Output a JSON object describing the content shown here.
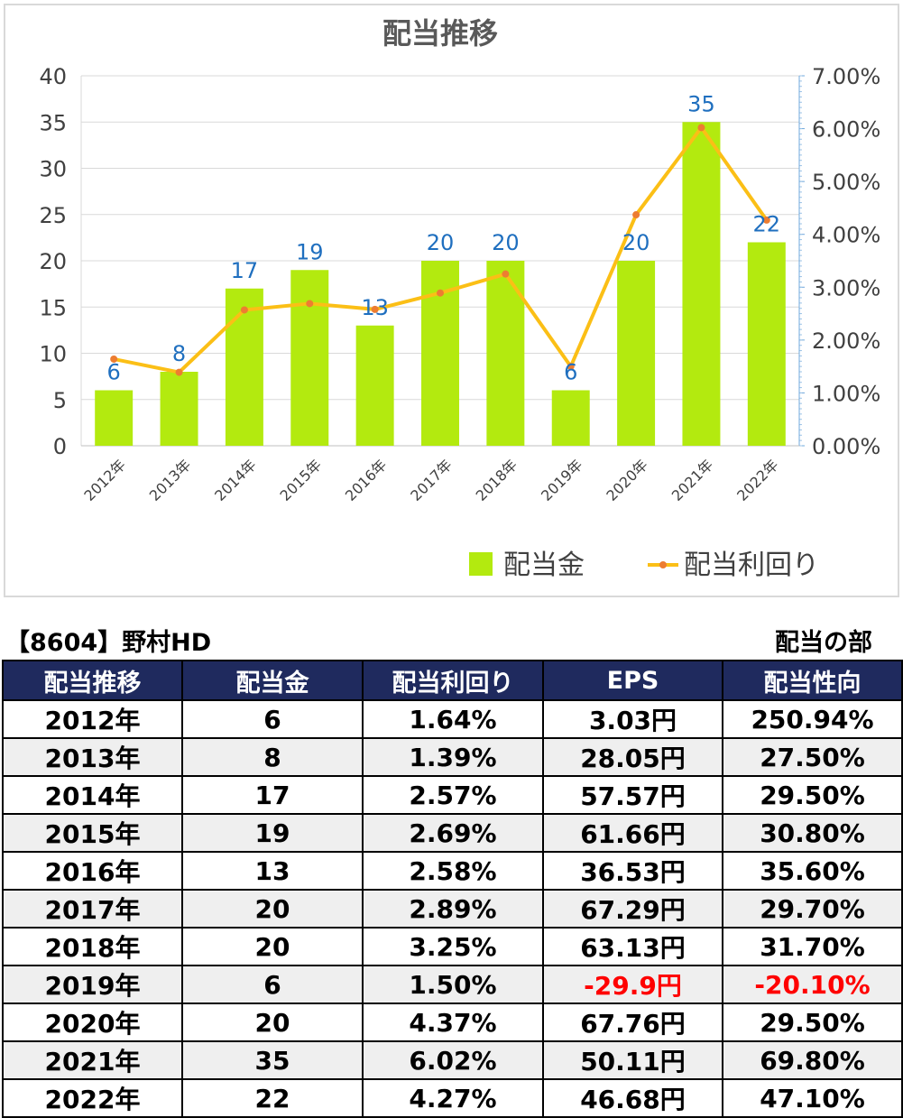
{
  "chart_data": {
    "type": "bar+line",
    "title": "配当推移",
    "categories": [
      "2012年",
      "2013年",
      "2014年",
      "2015年",
      "2016年",
      "2017年",
      "2018年",
      "2019年",
      "2020年",
      "2021年",
      "2022年"
    ],
    "series": [
      {
        "name": "配当金",
        "type": "bar",
        "axis": "left",
        "color": "#b3ea0f",
        "values": [
          6,
          8,
          17,
          19,
          13,
          20,
          20,
          6,
          20,
          35,
          22
        ]
      },
      {
        "name": "配当利回り",
        "type": "line",
        "axis": "right",
        "color": "#fbbf16",
        "values": [
          1.64,
          1.39,
          2.57,
          2.69,
          2.58,
          2.89,
          3.25,
          1.5,
          4.37,
          6.02,
          4.27
        ]
      }
    ],
    "ylim_left": [
      0,
      40
    ],
    "yticks_left": [
      "0",
      "5",
      "10",
      "15",
      "20",
      "25",
      "30",
      "35",
      "40"
    ],
    "ylim_right": [
      0,
      7
    ],
    "yticks_right": [
      "0.00%",
      "1.00%",
      "2.00%",
      "3.00%",
      "4.00%",
      "5.00%",
      "6.00%",
      "7.00%"
    ],
    "grid": true,
    "legend_position": "bottom-right",
    "data_label_color": "#1f6fbf"
  },
  "caption": {
    "left": "【8604】野村HD",
    "right": "配当の部"
  },
  "table": {
    "headers": [
      "配当推移",
      "配当金",
      "配当利回り",
      "EPS",
      "配当性向"
    ],
    "rows": [
      {
        "year": "2012年",
        "dividend": "6",
        "yield": "1.64%",
        "eps": "3.03円",
        "payout": "250.94%",
        "negative": false
      },
      {
        "year": "2013年",
        "dividend": "8",
        "yield": "1.39%",
        "eps": "28.05円",
        "payout": "27.50%",
        "negative": false
      },
      {
        "year": "2014年",
        "dividend": "17",
        "yield": "2.57%",
        "eps": "57.57円",
        "payout": "29.50%",
        "negative": false
      },
      {
        "year": "2015年",
        "dividend": "19",
        "yield": "2.69%",
        "eps": "61.66円",
        "payout": "30.80%",
        "negative": false
      },
      {
        "year": "2016年",
        "dividend": "13",
        "yield": "2.58%",
        "eps": "36.53円",
        "payout": "35.60%",
        "negative": false
      },
      {
        "year": "2017年",
        "dividend": "20",
        "yield": "2.89%",
        "eps": "67.29円",
        "payout": "29.70%",
        "negative": false
      },
      {
        "year": "2018年",
        "dividend": "20",
        "yield": "3.25%",
        "eps": "63.13円",
        "payout": "31.70%",
        "negative": false
      },
      {
        "year": "2019年",
        "dividend": "6",
        "yield": "1.50%",
        "eps": "-29.9円",
        "payout": "-20.10%",
        "negative": true
      },
      {
        "year": "2020年",
        "dividend": "20",
        "yield": "4.37%",
        "eps": "67.76円",
        "payout": "29.50%",
        "negative": false
      },
      {
        "year": "2021年",
        "dividend": "35",
        "yield": "6.02%",
        "eps": "50.11円",
        "payout": "69.80%",
        "negative": false
      },
      {
        "year": "2022年",
        "dividend": "22",
        "yield": "4.27%",
        "eps": "46.68円",
        "payout": "47.10%",
        "negative": false
      }
    ],
    "negative_color": "#ff0000",
    "header_bg": "#1f2a5e"
  }
}
